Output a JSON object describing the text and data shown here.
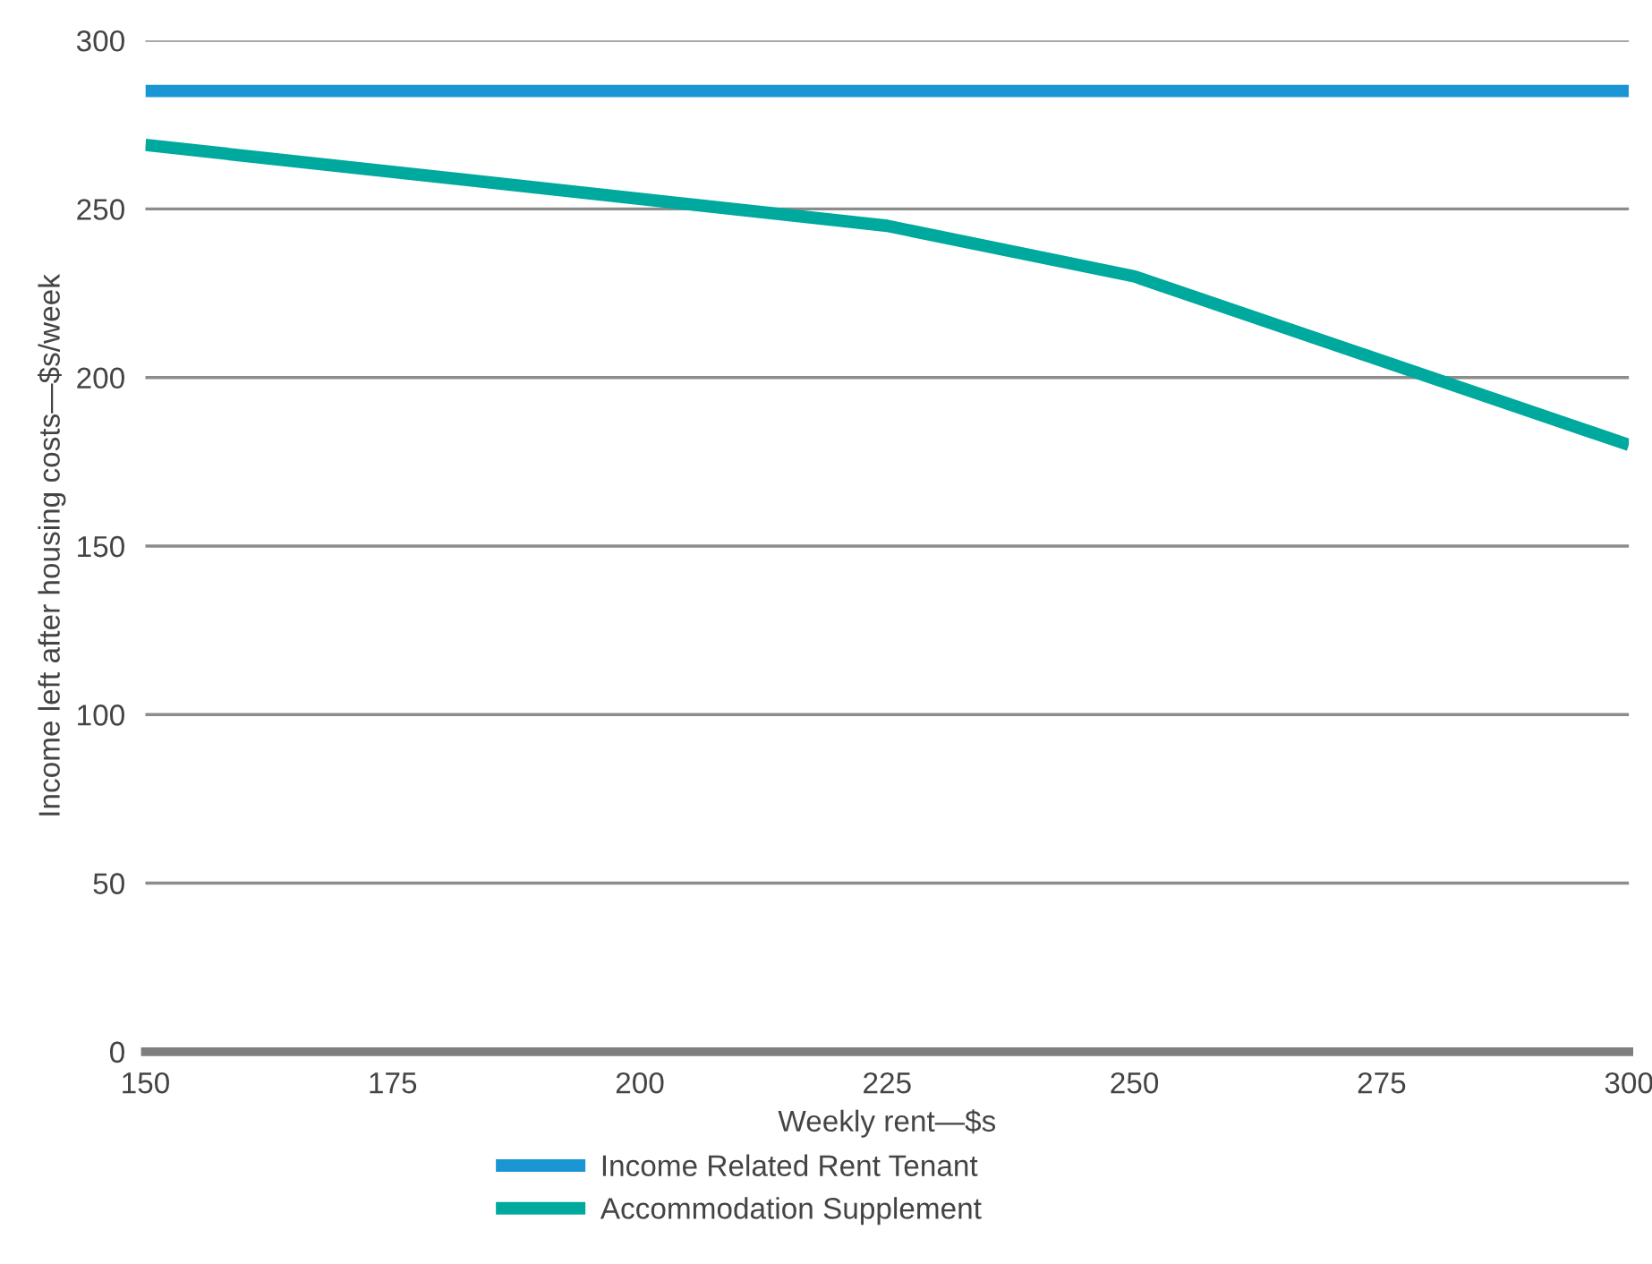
{
  "chart_data": {
    "type": "line",
    "xlabel": "Weekly rent—$s",
    "ylabel": "Income left after housing costs—$s/week",
    "series": [
      {
        "name": "Income Related Rent Tenant",
        "color": "#1b96d4",
        "x": [
          150,
          300
        ],
        "values": [
          285,
          285
        ]
      },
      {
        "name": "Accommodation Supplement",
        "color": "#00a99d",
        "x": [
          150,
          225,
          250,
          300
        ],
        "values": [
          269,
          245,
          230,
          180
        ]
      }
    ],
    "xlim": [
      150,
      300
    ],
    "xticks": [
      150,
      175,
      200,
      225,
      250,
      275,
      300
    ],
    "ylim": [
      0,
      300
    ],
    "yticks": [
      0,
      50,
      100,
      150,
      200,
      250,
      300
    ],
    "grid": "y",
    "legend": "bottom",
    "marker": "none",
    "line_style": "solid"
  }
}
